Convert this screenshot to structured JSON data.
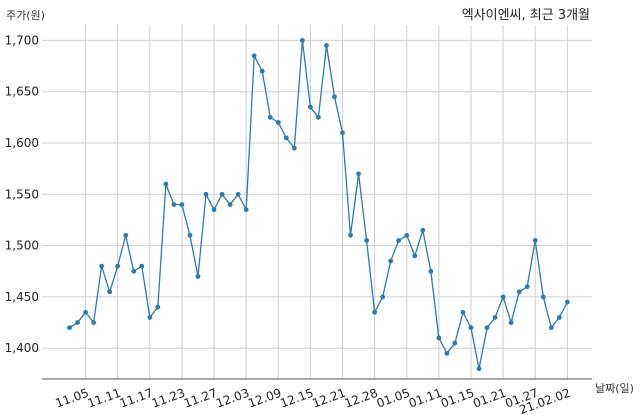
{
  "chart_data": {
    "type": "line",
    "title": "엑사이엔씨, 최근 3개월",
    "xlabel": "날짜(일)",
    "ylabel": "주가(원)",
    "ylim": [
      1370,
      1715
    ],
    "grid": true,
    "yticks": [
      1400,
      1450,
      1500,
      1550,
      1600,
      1650,
      1700
    ],
    "ytick_labels": [
      "1,400",
      "1,450",
      "1,500",
      "1,550",
      "1,600",
      "1,650",
      "1,700"
    ],
    "xtick_labels": [
      "11.05",
      "11.11",
      "11.17",
      "11.23",
      "11.27",
      "12.03",
      "12.09",
      "12.15",
      "12.21",
      "12.28",
      "01.05",
      "01.11",
      "01.15",
      "01.21",
      "01.27",
      "21.02.02"
    ],
    "xtick_index": [
      2,
      6,
      10,
      14,
      18,
      22,
      26,
      30,
      34,
      38,
      42,
      46,
      50,
      54,
      58,
      62
    ],
    "color": "#2b7bb0",
    "series": [
      {
        "values": [
          1420,
          1425,
          1435,
          1425,
          1480,
          1455,
          1480,
          1510,
          1475,
          1480,
          1430,
          1440,
          1560,
          1540,
          1540,
          1510,
          1470,
          1550,
          1535,
          1550,
          1540,
          1550,
          1535,
          1685,
          1670,
          1625,
          1620,
          1605,
          1595,
          1700,
          1635,
          1625,
          1695,
          1645,
          1610,
          1510,
          1570,
          1505,
          1435,
          1450,
          1485,
          1505,
          1510,
          1490,
          1515,
          1475,
          1410,
          1395,
          1405,
          1435,
          1420,
          1380,
          1420,
          1430,
          1450,
          1425,
          1455,
          1460,
          1505,
          1450,
          1420,
          1430,
          1445
        ]
      }
    ]
  }
}
